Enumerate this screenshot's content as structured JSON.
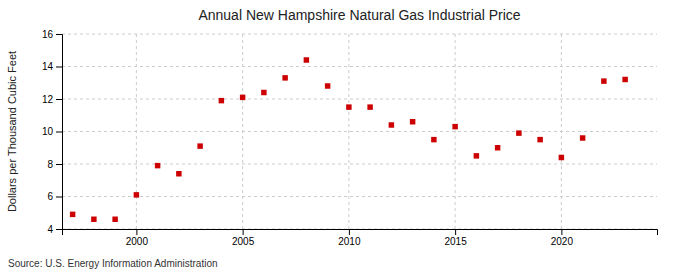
{
  "chart_data": {
    "type": "scatter",
    "title": "Annual New Hampshire Natural Gas Industrial Price",
    "ylabel": "Dollars per Thousand Cubic Feet",
    "source": "Source: U.S. Energy Information Administration",
    "x": [
      1997,
      1998,
      1999,
      2000,
      2001,
      2002,
      2003,
      2004,
      2005,
      2006,
      2007,
      2008,
      2009,
      2010,
      2011,
      2012,
      2013,
      2014,
      2015,
      2016,
      2017,
      2018,
      2019,
      2020,
      2021,
      2022,
      2023
    ],
    "values": [
      4.9,
      4.6,
      4.6,
      6.1,
      7.9,
      7.4,
      9.1,
      11.9,
      12.1,
      12.4,
      13.3,
      14.4,
      12.8,
      11.5,
      11.5,
      10.4,
      10.6,
      9.5,
      10.3,
      8.5,
      9.0,
      9.9,
      9.5,
      8.4,
      9.6,
      13.1,
      13.2
    ],
    "color": "#cc0000",
    "marker": "square",
    "xlim": [
      1996.5,
      2024.5
    ],
    "ylim": [
      4,
      16
    ],
    "xticks": [
      2000,
      2005,
      2010,
      2015,
      2020
    ],
    "yticks": [
      4,
      6,
      8,
      10,
      12,
      14,
      16
    ],
    "grid": true
  }
}
